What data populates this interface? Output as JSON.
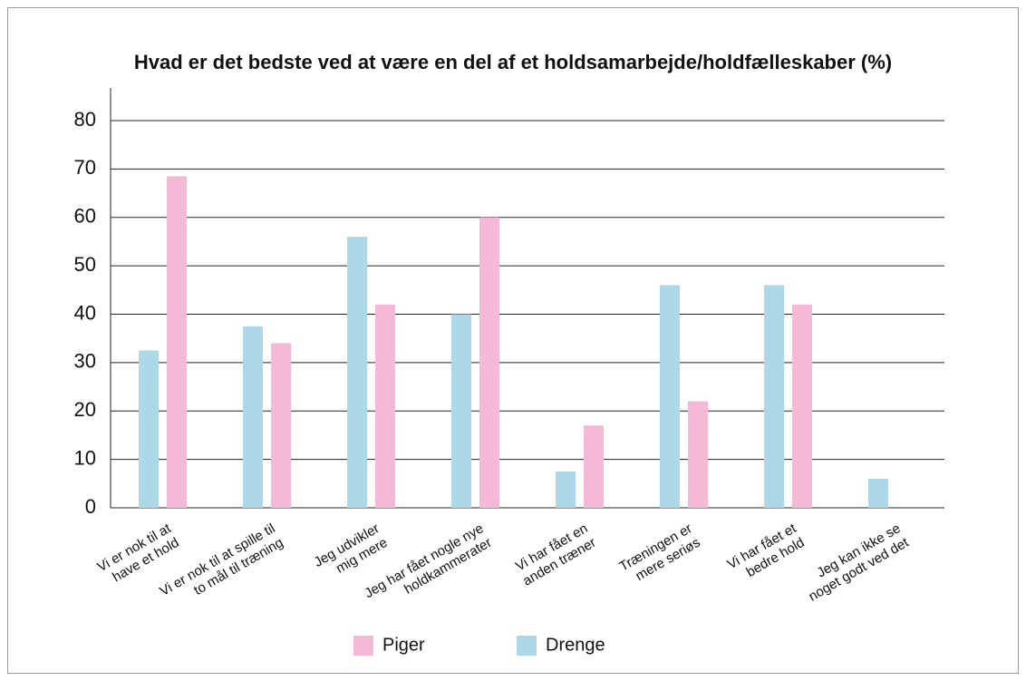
{
  "chart_data": {
    "type": "bar",
    "title": "Hvad er det bedste ved at være en del af et holdsamarbejde/holdfælleskaber (%)",
    "categories": [
      "Vi er nok til at\nhave et hold",
      "Vi er nok til at spille til\nto mål til træning",
      "Jeg udvikler\nmig mere",
      "Jeg har fået nogle nye\nholdkammerater",
      "Vi har fået en\nanden træner",
      "Træningen er\nmere seriøs",
      "Vi har fået et\nbedre hold",
      "Jeg kan ikke se\nnoget godt ved det"
    ],
    "series": [
      {
        "name": "Piger",
        "color": "#f5b8d5",
        "values": [
          68.5,
          34,
          42,
          60,
          17,
          22,
          42,
          null
        ]
      },
      {
        "name": "Drenge",
        "color": "#acd8e8",
        "values": [
          32.5,
          37.5,
          56,
          40,
          7.5,
          46,
          46,
          6
        ]
      }
    ],
    "ylim": [
      0,
      80
    ],
    "yticks": [
      0,
      10,
      20,
      30,
      40,
      50,
      60,
      70,
      80
    ],
    "grid": true
  }
}
